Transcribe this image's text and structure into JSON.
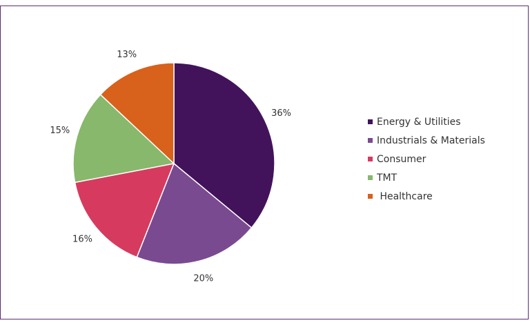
{
  "chart_data": {
    "type": "pie",
    "categories": [
      "Energy & Utilities",
      "Industrials & Materials",
      "Consumer",
      "TMT",
      "Healthcare"
    ],
    "legend_labels": [
      "Energy & Utilities",
      "Industrials & Materials",
      "Consumer",
      "TMT",
      " Healthcare"
    ],
    "values": [
      36,
      20,
      16,
      15,
      13
    ],
    "value_labels": [
      "36%",
      "20%",
      "16%",
      "15%",
      "13%"
    ],
    "colors": [
      "#42135a",
      "#7a4a90",
      "#d63b5f",
      "#87b86c",
      "#d8611b"
    ],
    "legend_position": "right",
    "start_angle": "12 o'clock, clockwise"
  }
}
